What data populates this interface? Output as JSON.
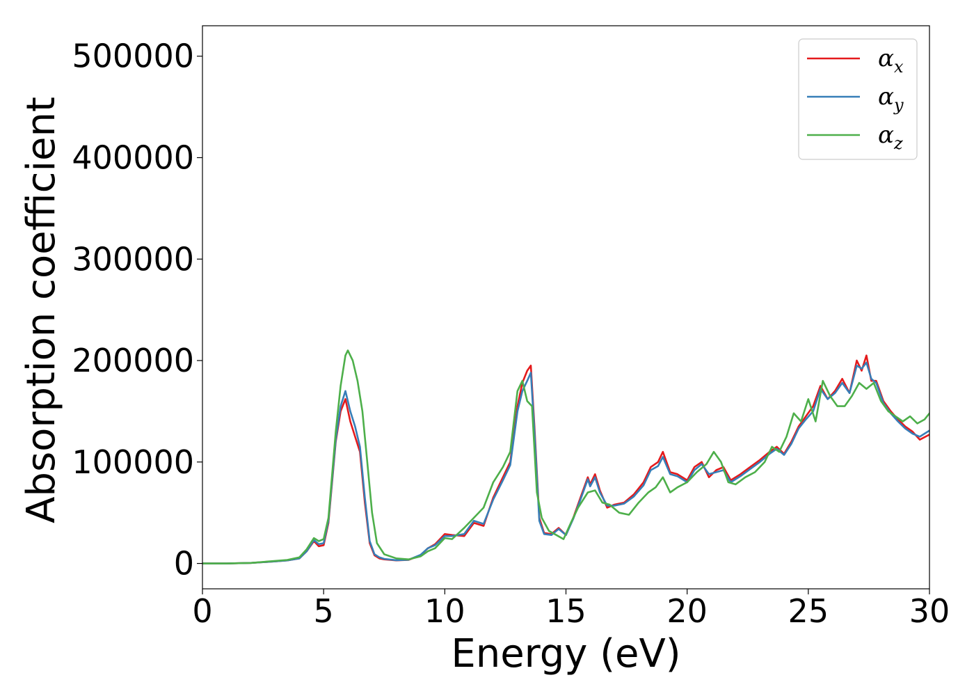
{
  "chart_data": {
    "type": "line",
    "title": "",
    "xlabel": "Energy (eV)",
    "ylabel": "Absorption coefficient",
    "xlim": [
      0,
      30
    ],
    "ylim": [
      -25000,
      530000
    ],
    "xticks": [
      0,
      5,
      10,
      15,
      20,
      25,
      30
    ],
    "yticks": [
      0,
      100000,
      200000,
      300000,
      400000,
      500000
    ],
    "grid": false,
    "legend_position": "top-right",
    "series": [
      {
        "name": "α_x",
        "symbol": "α",
        "subscript": "x",
        "color": "#e41a1c",
        "x": [
          0,
          1,
          2,
          3,
          3.5,
          4,
          4.3,
          4.6,
          4.8,
          5.0,
          5.2,
          5.5,
          5.7,
          5.9,
          6.1,
          6.3,
          6.5,
          6.7,
          6.9,
          7.1,
          7.3,
          7.5,
          8.0,
          8.5,
          9.0,
          9.3,
          9.6,
          10.0,
          10.3,
          10.8,
          11.2,
          11.6,
          12.0,
          12.4,
          12.7,
          13.0,
          13.2,
          13.4,
          13.55,
          13.7,
          13.9,
          14.1,
          14.4,
          14.7,
          15.0,
          15.3,
          15.6,
          15.9,
          16.0,
          16.2,
          16.4,
          16.7,
          17.0,
          17.4,
          17.8,
          18.2,
          18.5,
          18.8,
          19.0,
          19.3,
          19.6,
          20.0,
          20.3,
          20.6,
          20.9,
          21.2,
          21.5,
          21.8,
          22.2,
          22.6,
          23.0,
          23.4,
          23.7,
          24.0,
          24.3,
          24.6,
          24.9,
          25.2,
          25.5,
          25.8,
          26.1,
          26.4,
          26.7,
          27.0,
          27.2,
          27.4,
          27.6,
          27.8,
          28.1,
          28.4,
          28.7,
          29.0,
          29.3,
          29.6,
          30.0
        ],
        "values": [
          0,
          0,
          500,
          2000,
          3000,
          5000,
          12000,
          22000,
          17000,
          18000,
          40000,
          120000,
          150000,
          162000,
          140000,
          125000,
          110000,
          60000,
          20000,
          8000,
          5000,
          4000,
          3000,
          3500,
          8000,
          15000,
          19000,
          29000,
          28000,
          27000,
          40000,
          37000,
          65000,
          85000,
          100000,
          155000,
          178000,
          190000,
          195000,
          135000,
          45000,
          30000,
          29000,
          35000,
          28000,
          45000,
          65000,
          85000,
          78000,
          88000,
          72000,
          55000,
          58000,
          60000,
          68000,
          80000,
          95000,
          100000,
          110000,
          90000,
          88000,
          82000,
          95000,
          100000,
          85000,
          92000,
          95000,
          82000,
          88000,
          95000,
          102000,
          110000,
          115000,
          108000,
          120000,
          135000,
          145000,
          155000,
          175000,
          162000,
          170000,
          182000,
          168000,
          200000,
          190000,
          205000,
          180000,
          180000,
          160000,
          150000,
          142000,
          135000,
          130000,
          122000,
          127000
        ]
      },
      {
        "name": "α_y",
        "symbol": "α",
        "subscript": "y",
        "color": "#377eb8",
        "x": [
          0,
          1,
          2,
          3,
          3.5,
          4,
          4.3,
          4.6,
          4.8,
          5.0,
          5.2,
          5.5,
          5.7,
          5.9,
          6.1,
          6.3,
          6.5,
          6.7,
          6.9,
          7.1,
          7.3,
          7.5,
          8.0,
          8.5,
          9.0,
          9.3,
          9.6,
          10.0,
          10.3,
          10.8,
          11.2,
          11.6,
          12.0,
          12.4,
          12.7,
          13.0,
          13.2,
          13.4,
          13.55,
          13.7,
          13.9,
          14.1,
          14.4,
          14.7,
          15.0,
          15.3,
          15.6,
          15.9,
          16.0,
          16.2,
          16.4,
          16.7,
          17.0,
          17.4,
          17.8,
          18.2,
          18.5,
          18.8,
          19.0,
          19.3,
          19.6,
          20.0,
          20.3,
          20.6,
          20.9,
          21.2,
          21.5,
          21.8,
          22.2,
          22.6,
          23.0,
          23.4,
          23.7,
          24.0,
          24.3,
          24.6,
          24.9,
          25.2,
          25.5,
          25.8,
          26.1,
          26.4,
          26.7,
          27.0,
          27.2,
          27.4,
          27.6,
          27.8,
          28.1,
          28.4,
          28.7,
          29.0,
          29.3,
          29.6,
          30.0
        ],
        "values": [
          0,
          0,
          500,
          2000,
          3000,
          5000,
          12000,
          23000,
          19000,
          20000,
          42000,
          122000,
          155000,
          170000,
          150000,
          135000,
          115000,
          65000,
          22000,
          9000,
          6000,
          4500,
          3200,
          3600,
          8500,
          15000,
          18000,
          27000,
          27000,
          29000,
          42000,
          39000,
          63000,
          82000,
          97000,
          150000,
          170000,
          180000,
          188000,
          130000,
          42000,
          29000,
          28000,
          34000,
          28000,
          44000,
          63000,
          83000,
          76000,
          85000,
          70000,
          57000,
          57000,
          59000,
          66000,
          77000,
          92000,
          96000,
          105000,
          88000,
          86000,
          80000,
          92000,
          98000,
          88000,
          90000,
          92000,
          80000,
          86000,
          93000,
          100000,
          108000,
          113000,
          107000,
          118000,
          133000,
          142000,
          150000,
          172000,
          162000,
          168000,
          178000,
          168000,
          195000,
          192000,
          198000,
          182000,
          178000,
          158000,
          148000,
          140000,
          133000,
          128000,
          125000,
          131000
        ]
      },
      {
        "name": "α_z",
        "symbol": "α",
        "subscript": "z",
        "color": "#4daf4a",
        "x": [
          0,
          1,
          2,
          3,
          3.5,
          4,
          4.3,
          4.6,
          4.8,
          5.0,
          5.2,
          5.5,
          5.7,
          5.9,
          6.0,
          6.2,
          6.4,
          6.6,
          6.8,
          7.0,
          7.2,
          7.5,
          8.0,
          8.5,
          9.0,
          9.3,
          9.6,
          10.0,
          10.3,
          10.8,
          11.2,
          11.6,
          12.0,
          12.4,
          12.7,
          13.0,
          13.2,
          13.4,
          13.6,
          13.8,
          14.0,
          14.3,
          14.6,
          14.9,
          15.2,
          15.5,
          15.9,
          16.2,
          16.5,
          16.8,
          17.2,
          17.6,
          18.0,
          18.4,
          18.7,
          19.0,
          19.3,
          19.6,
          20.0,
          20.4,
          20.8,
          21.1,
          21.4,
          21.7,
          22.0,
          22.4,
          22.8,
          23.2,
          23.5,
          23.8,
          24.1,
          24.4,
          24.7,
          25.0,
          25.3,
          25.6,
          25.9,
          26.2,
          26.5,
          26.8,
          27.1,
          27.4,
          27.7,
          28.0,
          28.3,
          28.6,
          28.9,
          29.2,
          29.5,
          29.8,
          30.0
        ],
        "values": [
          0,
          0,
          500,
          2500,
          3500,
          6000,
          14000,
          25000,
          22000,
          24000,
          45000,
          130000,
          175000,
          205000,
          210000,
          200000,
          180000,
          150000,
          100000,
          50000,
          20000,
          9000,
          5000,
          4000,
          7000,
          12000,
          15000,
          25000,
          24000,
          35000,
          45000,
          55000,
          80000,
          95000,
          110000,
          170000,
          180000,
          160000,
          155000,
          70000,
          45000,
          32000,
          28000,
          24000,
          40000,
          55000,
          70000,
          72000,
          60000,
          58000,
          50000,
          48000,
          60000,
          70000,
          75000,
          85000,
          70000,
          75000,
          80000,
          90000,
          98000,
          110000,
          100000,
          80000,
          78000,
          85000,
          90000,
          100000,
          115000,
          110000,
          125000,
          148000,
          140000,
          162000,
          140000,
          180000,
          165000,
          155000,
          155000,
          165000,
          178000,
          172000,
          178000,
          160000,
          150000,
          145000,
          140000,
          145000,
          138000,
          142000,
          148000
        ]
      }
    ]
  }
}
